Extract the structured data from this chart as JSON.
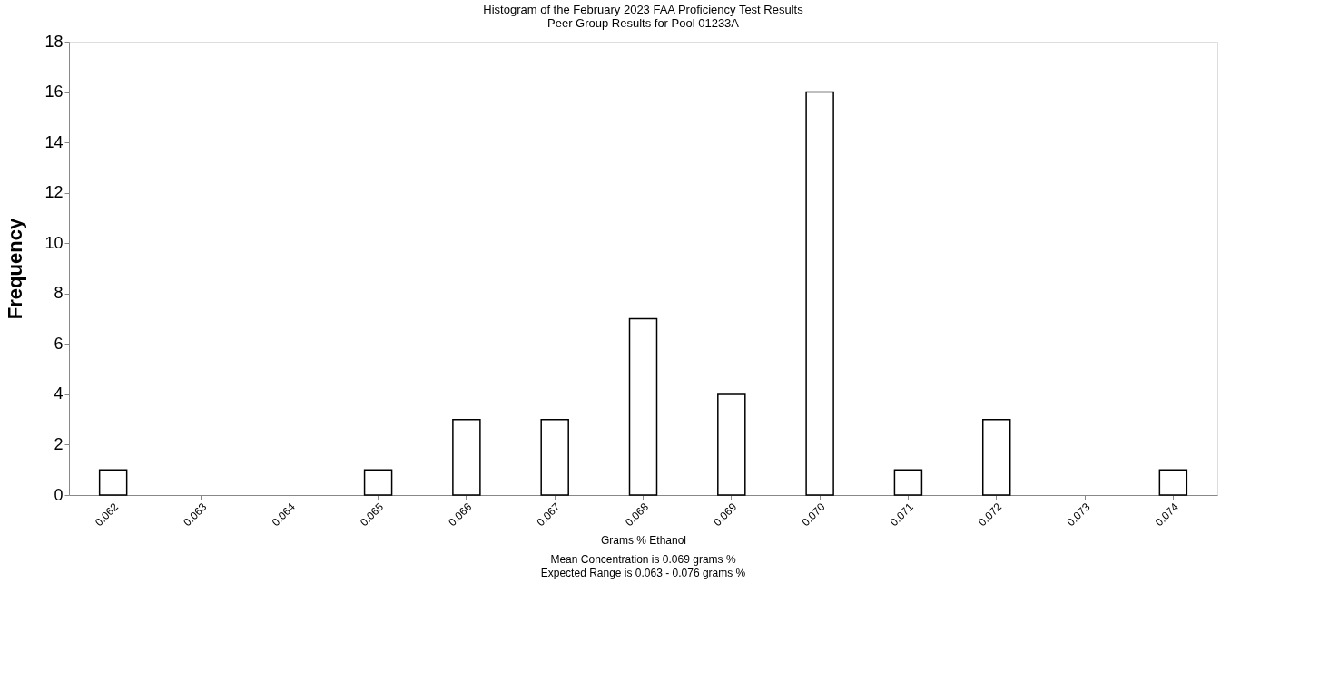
{
  "chart_data": {
    "type": "bar",
    "title": [
      "Histogram of the February 2023 FAA Proficiency Test  Results",
      "Peer Group Results for Pool  01233A"
    ],
    "xlabel": "Grams % Ethanol",
    "ylabel": "Frequency",
    "annotations": [
      "Mean Concentration is 0.069 grams %",
      "Expected Range is  0.063 - 0.076 grams %"
    ],
    "categories": [
      "0.062",
      "0.063",
      "0.064",
      "0.065",
      "0.066",
      "0.067",
      "0.068",
      "0.069",
      "0.070",
      "0.071",
      "0.072",
      "0.073",
      "0.074"
    ],
    "values": [
      1,
      0,
      0,
      1,
      3,
      3,
      7,
      4,
      16,
      1,
      3,
      0,
      1
    ],
    "color": "#ffffff",
    "ylim": [
      0,
      18
    ],
    "yticks": [
      0,
      2,
      4,
      6,
      8,
      10,
      12,
      14,
      16,
      18
    ],
    "grid": false
  }
}
